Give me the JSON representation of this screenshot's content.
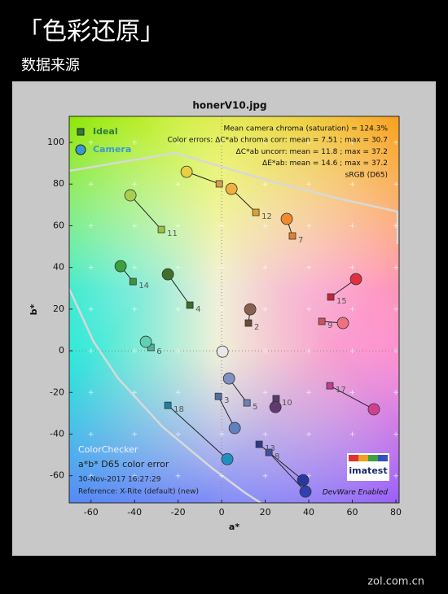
{
  "header": {
    "title": "「色彩还原」",
    "subtitle": "数据来源"
  },
  "chart_data": {
    "type": "scatter",
    "title": "honerV10.jpg",
    "xlabel": "a*",
    "ylabel": "b*",
    "xlim": [
      -70,
      81.5
    ],
    "ylim": [
      -73,
      112.5
    ],
    "xticks": [
      -60,
      -40,
      -20,
      0,
      20,
      40,
      60,
      80
    ],
    "yticks": [
      -60,
      -40,
      -20,
      0,
      20,
      40,
      60,
      80,
      100
    ],
    "grid": true,
    "legend": "upper left",
    "point_labels": [
      "11",
      "12",
      "7",
      null,
      "14",
      "4",
      "15",
      "2",
      "9",
      "6",
      null,
      "5",
      "10",
      "3",
      "17",
      "18",
      "13",
      "8"
    ],
    "series": [
      {
        "name": "Ideal",
        "marker": "square",
        "color": "#2d7d3a",
        "x": [
          -27.7,
          15.7,
          32.5,
          -1.1,
          -40.7,
          -14.6,
          50.1,
          12.3,
          46,
          -32.5,
          0,
          11.6,
          25,
          -1.5,
          49.7,
          -24.7,
          17.2,
          21.7
        ],
        "values": [
          58.2,
          66.4,
          55.1,
          80.1,
          33.2,
          21.9,
          25.8,
          13.3,
          14.1,
          1.6,
          0,
          -25,
          -23,
          -21.9,
          -16.8,
          -26.2,
          -44.9,
          -48.8
        ],
        "point_colors": [
          "#9cc040",
          "#e0a030",
          "#e08030",
          "#d8a040",
          "#409040",
          "#3c6e30",
          "#c02838",
          "#6a4a3a",
          "#d05060",
          "#50b0a0",
          "#c0c0c0",
          "#7080b0",
          "#5a3a70",
          "#5070a0",
          "#c04090",
          "#2080a0",
          "#283c90",
          "#4050a0"
        ]
      },
      {
        "name": "Camera",
        "marker": "circle",
        "color": "#3a9ad0",
        "x": [
          -41.9,
          4.5,
          29.9,
          -16.1,
          -46.4,
          -24.7,
          61.7,
          13.1,
          55.7,
          -34.8,
          0.4,
          3.4,
          24.7,
          6,
          69.9,
          2.6,
          37.4,
          38.5
        ],
        "values": [
          74.6,
          77.7,
          63.3,
          85.9,
          40.6,
          36.7,
          34.4,
          19.9,
          13.3,
          4.3,
          -0.4,
          -13.3,
          -27,
          -37.1,
          -28.1,
          -52,
          -62.1,
          -67.6
        ],
        "point_colors": [
          "#a8d050",
          "#f0b040",
          "#f08a30",
          "#e8d040",
          "#3aa040",
          "#40702a",
          "#e03040",
          "#8a6050",
          "#f07080",
          "#60d0b0",
          "#e8e8e8",
          "#8090c0",
          "#603a70",
          "#6080c0",
          "#d04090",
          "#2090c0",
          "#2838a0",
          "#3040b0"
        ]
      }
    ],
    "annotations": [
      "Mean camera chroma (saturation) = 124.3%",
      "Color errors: ΔC*ab chroma corr:  mean = 7.51 ;  max = 30.7",
      "ΔC*ab uncorr:  mean = 11.8 ;  max = 37.2",
      "ΔE*ab:  mean = 14.6 ;  max = 37.2",
      "sRGB (D65)"
    ],
    "notes": [
      "ColorChecker",
      "a*b* D65 color error",
      "30-Nov-2017 16:27:29",
      "Reference: X-Rite (default) (new)"
    ],
    "logo": "imatest",
    "badge": "DevWare Enabled"
  },
  "watermark": "zol.com.cn"
}
